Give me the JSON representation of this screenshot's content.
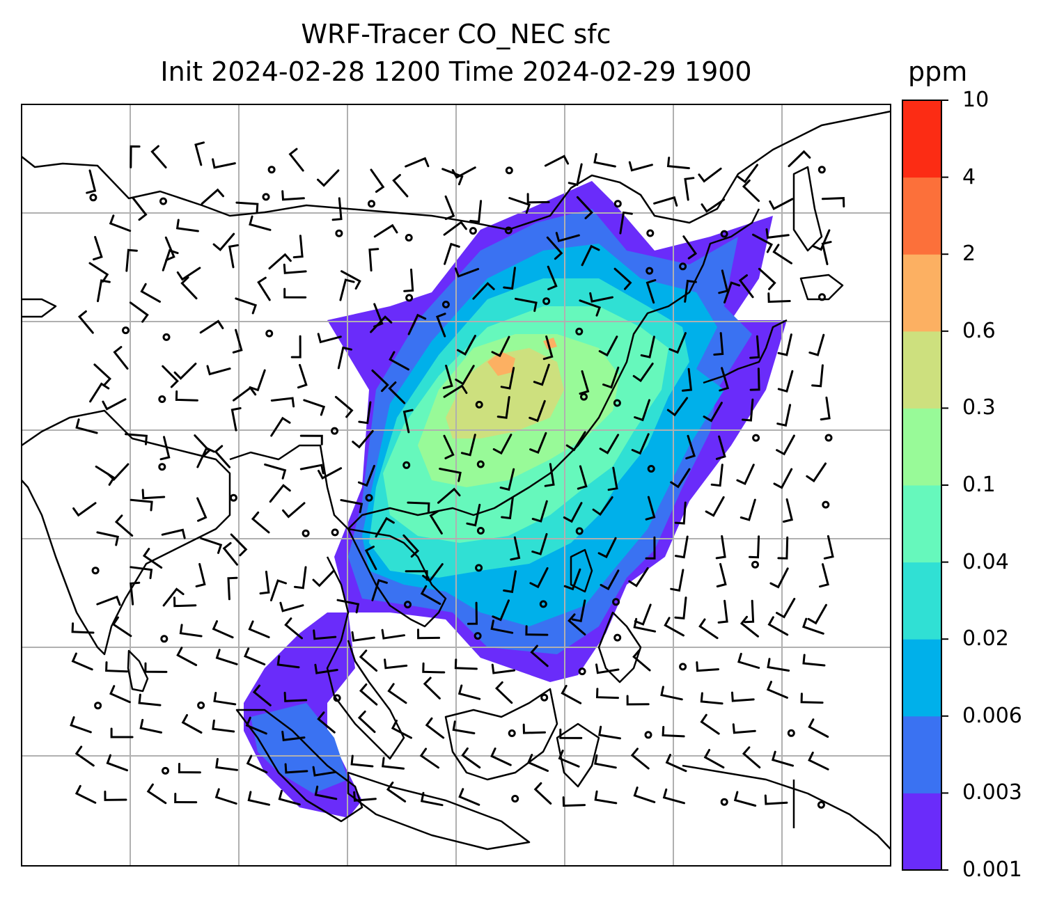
{
  "title": {
    "line1": "WRF-Tracer CO_NEC sfc",
    "line2": "Init 2024-02-28 1200 Time 2024-02-29 1900"
  },
  "colorbar": {
    "unit": "ppm",
    "levels": [
      "0.001",
      "0.003",
      "0.006",
      "0.02",
      "0.04",
      "0.1",
      "0.3",
      "0.6",
      "2",
      "4",
      "10"
    ],
    "colors": [
      "#6a2cfa",
      "#3a72f2",
      "#00b0ea",
      "#30e0d4",
      "#66f8bc",
      "#98fa98",
      "#cde07e",
      "#fcb062",
      "#fc703a",
      "#fc2c14"
    ]
  },
  "map": {
    "field": "CO_NEC surface tracer concentration",
    "overlay": "wind barbs",
    "gridlines": true
  }
}
